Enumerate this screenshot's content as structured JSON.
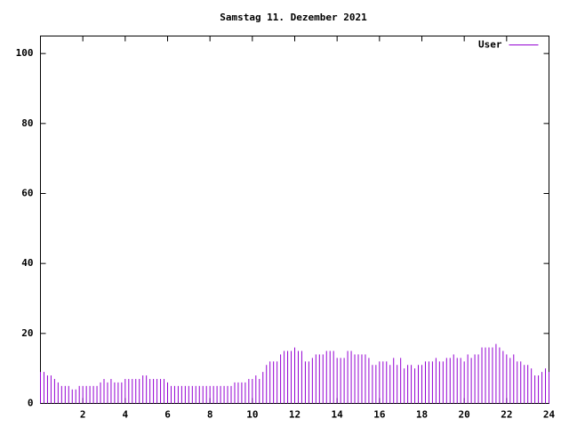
{
  "chart_data": {
    "type": "impulses",
    "title": "Samstag 11. Dezember 2021",
    "x": [
      0,
      0.167,
      0.333,
      0.5,
      0.667,
      0.833,
      1,
      1.167,
      1.333,
      1.5,
      1.667,
      1.833,
      2,
      2.167,
      2.333,
      2.5,
      2.667,
      2.833,
      3,
      3.167,
      3.333,
      3.5,
      3.667,
      3.833,
      4,
      4.167,
      4.333,
      4.5,
      4.667,
      4.833,
      5,
      5.167,
      5.333,
      5.5,
      5.667,
      5.833,
      6,
      6.167,
      6.333,
      6.5,
      6.667,
      6.833,
      7,
      7.167,
      7.333,
      7.5,
      7.667,
      7.833,
      8,
      8.167,
      8.333,
      8.5,
      8.667,
      8.833,
      9,
      9.167,
      9.333,
      9.5,
      9.667,
      9.833,
      10,
      10.167,
      10.333,
      10.5,
      10.667,
      10.833,
      11,
      11.167,
      11.333,
      11.5,
      11.667,
      11.833,
      12,
      12.167,
      12.333,
      12.5,
      12.667,
      12.833,
      13,
      13.167,
      13.333,
      13.5,
      13.667,
      13.833,
      14,
      14.167,
      14.333,
      14.5,
      14.667,
      14.833,
      15,
      15.167,
      15.333,
      15.5,
      15.667,
      15.833,
      16,
      16.167,
      16.333,
      16.5,
      16.667,
      16.833,
      17,
      17.167,
      17.333,
      17.5,
      17.667,
      17.833,
      18,
      18.167,
      18.333,
      18.5,
      18.667,
      18.833,
      19,
      19.167,
      19.333,
      19.5,
      19.667,
      19.833,
      20,
      20.167,
      20.333,
      20.5,
      20.667,
      20.833,
      21,
      21.167,
      21.333,
      21.5,
      21.667,
      21.833,
      22,
      22.167,
      22.333,
      22.5,
      22.667,
      22.833,
      23,
      23.167,
      23.333,
      23.5,
      23.667,
      23.833,
      24
    ],
    "series": [
      {
        "name": "User",
        "color": "#9400d3",
        "values": [
          9,
          9,
          8,
          8,
          7,
          6,
          5,
          5,
          5,
          4,
          4,
          5,
          5,
          5,
          5,
          5,
          5,
          6,
          7,
          6,
          7,
          6,
          6,
          6,
          7,
          7,
          7,
          7,
          7,
          8,
          8,
          7,
          7,
          7,
          7,
          7,
          6,
          5,
          5,
          5,
          5,
          5,
          5,
          5,
          5,
          5,
          5,
          5,
          5,
          5,
          5,
          5,
          5,
          5,
          5,
          6,
          6,
          6,
          6,
          7,
          7,
          8,
          7,
          9,
          11,
          12,
          12,
          12,
          14,
          15,
          15,
          15,
          16,
          15,
          15,
          12,
          12,
          13,
          14,
          14,
          14,
          15,
          15,
          15,
          13,
          13,
          13,
          15,
          15,
          14,
          14,
          14,
          14,
          13,
          11,
          11,
          12,
          12,
          12,
          11,
          13,
          11,
          13,
          10,
          11,
          11,
          10,
          11,
          11,
          12,
          12,
          12,
          13,
          12,
          12,
          13,
          13,
          14,
          13,
          13,
          12,
          14,
          13,
          14,
          14,
          16,
          16,
          16,
          16,
          17,
          16,
          15,
          14,
          13,
          14,
          12,
          12,
          11,
          11,
          10,
          8,
          8,
          9,
          10,
          9
        ]
      }
    ],
    "xlim": [
      0,
      24
    ],
    "xticks": [
      2,
      4,
      6,
      8,
      10,
      12,
      14,
      16,
      18,
      20,
      22,
      24
    ],
    "ylim": [
      0,
      105
    ],
    "yticks": [
      0,
      20,
      40,
      60,
      80,
      100
    ],
    "grid": false,
    "legend": "top-right"
  }
}
